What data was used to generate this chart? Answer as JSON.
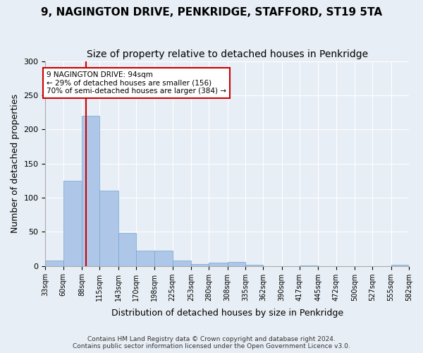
{
  "title": "9, NAGINGTON DRIVE, PENKRIDGE, STAFFORD, ST19 5TA",
  "subtitle": "Size of property relative to detached houses in Penkridge",
  "xlabel": "Distribution of detached houses by size in Penkridge",
  "ylabel": "Number of detached properties",
  "footer_line1": "Contains HM Land Registry data © Crown copyright and database right 2024.",
  "footer_line2": "Contains public sector information licensed under the Open Government Licence v3.0.",
  "bar_edges": [
    33,
    60,
    88,
    115,
    143,
    170,
    198,
    225,
    253,
    280,
    308,
    335,
    362,
    390,
    417,
    445,
    472,
    500,
    527,
    555,
    582
  ],
  "bar_heights": [
    8,
    125,
    220,
    110,
    48,
    22,
    22,
    8,
    3,
    5,
    6,
    2,
    0,
    0,
    1,
    0,
    0,
    0,
    0,
    2
  ],
  "bar_color": "#aec6e8",
  "bar_edgecolor": "#6fa8d0",
  "property_size": 94,
  "property_size_label": "9 NAGINGTON DRIVE: 94sqm",
  "annotation_line1": "← 29% of detached houses are smaller (156)",
  "annotation_line2": "70% of semi-detached houses are larger (384) →",
  "red_line_color": "#cc0000",
  "annotation_box_edgecolor": "#cc0000",
  "ylim": [
    0,
    300
  ],
  "yticks": [
    0,
    50,
    100,
    150,
    200,
    250,
    300
  ],
  "bg_color": "#e8eef5",
  "plot_bg_color": "#e8eef5",
  "title_fontsize": 11,
  "subtitle_fontsize": 10,
  "xlabel_fontsize": 9,
  "ylabel_fontsize": 9
}
